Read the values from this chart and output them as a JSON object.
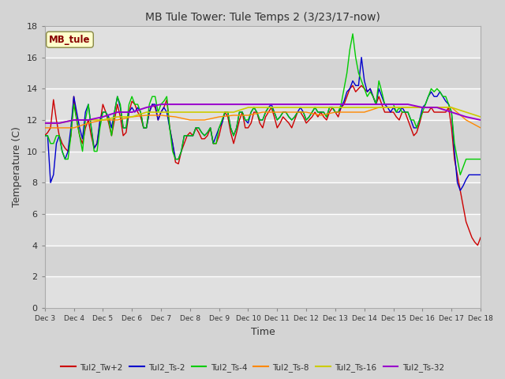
{
  "title": "MB Tule Tower: Tule Temps 2 (3/23/17-now)",
  "xlabel": "Time",
  "ylabel": "Temperature (C)",
  "ylim": [
    0,
    18
  ],
  "xlim": [
    0,
    15
  ],
  "x_tick_labels": [
    "Dec 3",
    "Dec 4",
    "Dec 5",
    "Dec 6",
    "Dec 7",
    "Dec 8",
    "Dec 9",
    "Dec 10",
    "Dec 11",
    "Dec 12",
    "Dec 13",
    "Dec 14",
    "Dec 15",
    "Dec 16",
    "Dec 17",
    "Dec 18"
  ],
  "fig_bg": "#d4d4d4",
  "plot_bg": "#e8e8e8",
  "band_colors": [
    "#e0e0e0",
    "#d0d0d0"
  ],
  "legend_box_label": "MB_tule",
  "series": [
    {
      "name": "Tul2_Tw+2",
      "color": "#cc0000",
      "lw": 1.0,
      "data_x": [
        0,
        0.1,
        0.2,
        0.3,
        0.4,
        0.5,
        0.6,
        0.7,
        0.8,
        0.9,
        1.0,
        1.1,
        1.2,
        1.3,
        1.4,
        1.5,
        1.6,
        1.7,
        1.8,
        1.9,
        2.0,
        2.1,
        2.2,
        2.3,
        2.4,
        2.5,
        2.6,
        2.7,
        2.8,
        2.9,
        3.0,
        3.1,
        3.2,
        3.3,
        3.4,
        3.5,
        3.6,
        3.7,
        3.8,
        3.9,
        4.0,
        4.1,
        4.2,
        4.3,
        4.4,
        4.5,
        4.6,
        4.7,
        4.8,
        4.9,
        5.0,
        5.1,
        5.2,
        5.3,
        5.4,
        5.5,
        5.6,
        5.7,
        5.8,
        5.9,
        6.0,
        6.1,
        6.2,
        6.3,
        6.4,
        6.5,
        6.6,
        6.7,
        6.8,
        6.9,
        7.0,
        7.1,
        7.2,
        7.3,
        7.4,
        7.5,
        7.6,
        7.7,
        7.8,
        7.9,
        8.0,
        8.1,
        8.2,
        8.3,
        8.4,
        8.5,
        8.6,
        8.7,
        8.8,
        8.9,
        9.0,
        9.1,
        9.2,
        9.3,
        9.4,
        9.5,
        9.6,
        9.7,
        9.8,
        9.9,
        10.0,
        10.1,
        10.2,
        10.3,
        10.4,
        10.5,
        10.6,
        10.7,
        10.8,
        10.9,
        11.0,
        11.1,
        11.2,
        11.3,
        11.4,
        11.5,
        11.6,
        11.7,
        11.8,
        11.9,
        12.0,
        12.1,
        12.2,
        12.3,
        12.4,
        12.5,
        12.6,
        12.7,
        12.8,
        12.9,
        13.0,
        13.1,
        13.2,
        13.3,
        13.4,
        13.5,
        13.6,
        13.7,
        13.8,
        13.9,
        14.0,
        14.1,
        14.2,
        14.3,
        14.4,
        14.5,
        14.6,
        14.7,
        14.8,
        14.9,
        15.0
      ],
      "data_y": [
        11.0,
        11.2,
        11.5,
        13.3,
        12.0,
        11.0,
        10.5,
        10.2,
        10.0,
        11.0,
        13.5,
        12.0,
        11.0,
        10.5,
        11.5,
        12.0,
        11.0,
        10.2,
        10.5,
        11.8,
        13.0,
        12.5,
        11.8,
        11.0,
        12.0,
        13.0,
        12.2,
        11.0,
        11.2,
        12.5,
        13.2,
        13.0,
        12.5,
        12.2,
        11.5,
        11.5,
        12.5,
        13.0,
        12.8,
        12.0,
        12.5,
        12.8,
        13.3,
        11.5,
        10.5,
        9.3,
        9.2,
        10.0,
        10.5,
        11.0,
        11.2,
        11.0,
        11.5,
        11.2,
        10.8,
        10.8,
        11.0,
        11.5,
        10.5,
        10.5,
        11.0,
        11.8,
        12.5,
        12.2,
        11.2,
        10.5,
        11.2,
        12.0,
        12.5,
        11.5,
        11.5,
        11.8,
        12.5,
        12.5,
        11.8,
        11.5,
        12.2,
        12.5,
        12.8,
        12.2,
        11.5,
        11.8,
        12.2,
        12.0,
        11.8,
        11.5,
        12.0,
        12.5,
        12.5,
        12.2,
        11.8,
        12.0,
        12.2,
        12.5,
        12.2,
        12.5,
        12.2,
        12.0,
        12.5,
        12.8,
        12.5,
        12.2,
        12.8,
        13.0,
        13.5,
        14.0,
        14.2,
        13.8,
        14.0,
        14.2,
        14.0,
        13.8,
        14.0,
        13.5,
        13.0,
        13.5,
        13.0,
        12.5,
        12.5,
        12.5,
        12.5,
        12.2,
        12.0,
        12.5,
        12.5,
        12.0,
        11.5,
        11.0,
        11.2,
        11.8,
        12.5,
        12.5,
        12.5,
        12.8,
        12.5,
        12.5,
        12.5,
        12.5,
        12.5,
        12.8,
        11.5,
        9.5,
        8.5,
        7.5,
        6.5,
        5.5,
        5.0,
        4.5,
        4.2,
        4.0,
        4.5
      ]
    },
    {
      "name": "Tul2_Ts-2",
      "color": "#0000cc",
      "lw": 1.0,
      "data_x": [
        0,
        0.1,
        0.2,
        0.3,
        0.4,
        0.5,
        0.6,
        0.7,
        0.8,
        0.9,
        1.0,
        1.1,
        1.2,
        1.3,
        1.4,
        1.5,
        1.6,
        1.7,
        1.8,
        1.9,
        2.0,
        2.1,
        2.2,
        2.3,
        2.4,
        2.5,
        2.6,
        2.7,
        2.8,
        2.9,
        3.0,
        3.1,
        3.2,
        3.3,
        3.4,
        3.5,
        3.6,
        3.7,
        3.8,
        3.9,
        4.0,
        4.1,
        4.2,
        4.3,
        4.4,
        4.5,
        4.6,
        4.7,
        4.8,
        4.9,
        5.0,
        5.1,
        5.2,
        5.3,
        5.4,
        5.5,
        5.6,
        5.7,
        5.8,
        5.9,
        6.0,
        6.1,
        6.2,
        6.3,
        6.4,
        6.5,
        6.6,
        6.7,
        6.8,
        6.9,
        7.0,
        7.1,
        7.2,
        7.3,
        7.4,
        7.5,
        7.6,
        7.7,
        7.8,
        7.9,
        8.0,
        8.1,
        8.2,
        8.3,
        8.4,
        8.5,
        8.6,
        8.7,
        8.8,
        8.9,
        9.0,
        9.1,
        9.2,
        9.3,
        9.4,
        9.5,
        9.6,
        9.7,
        9.8,
        9.9,
        10.0,
        10.1,
        10.2,
        10.3,
        10.4,
        10.5,
        10.6,
        10.7,
        10.8,
        10.9,
        11.0,
        11.1,
        11.2,
        11.3,
        11.4,
        11.5,
        11.6,
        11.7,
        11.8,
        11.9,
        12.0,
        12.1,
        12.2,
        12.3,
        12.4,
        12.5,
        12.6,
        12.7,
        12.8,
        12.9,
        13.0,
        13.1,
        13.2,
        13.3,
        13.4,
        13.5,
        13.6,
        13.7,
        13.8,
        13.9,
        14.0,
        14.1,
        14.2,
        14.3,
        14.4,
        14.5,
        14.6,
        14.7,
        14.8,
        14.9,
        15.0
      ],
      "data_y": [
        11.0,
        11.0,
        8.0,
        8.5,
        10.5,
        11.0,
        10.0,
        9.5,
        10.0,
        11.5,
        13.5,
        12.5,
        11.5,
        10.8,
        12.5,
        13.0,
        11.5,
        10.2,
        10.5,
        12.0,
        12.5,
        12.5,
        12.2,
        11.5,
        12.5,
        13.5,
        12.8,
        11.5,
        11.5,
        12.5,
        12.8,
        12.5,
        12.8,
        12.5,
        11.5,
        11.5,
        12.5,
        13.0,
        13.0,
        12.0,
        12.5,
        12.8,
        12.5,
        11.5,
        10.5,
        9.5,
        9.5,
        10.0,
        11.0,
        11.0,
        11.0,
        11.0,
        11.5,
        11.5,
        11.2,
        11.0,
        11.2,
        11.5,
        10.5,
        11.0,
        11.5,
        11.8,
        12.5,
        12.5,
        11.5,
        11.0,
        11.5,
        12.5,
        12.5,
        12.0,
        11.8,
        12.5,
        12.8,
        12.5,
        12.0,
        12.0,
        12.5,
        12.8,
        13.0,
        12.5,
        12.0,
        12.2,
        12.5,
        12.5,
        12.2,
        12.0,
        12.2,
        12.5,
        12.8,
        12.5,
        12.0,
        12.2,
        12.5,
        12.8,
        12.5,
        12.5,
        12.5,
        12.2,
        12.8,
        12.8,
        12.5,
        12.5,
        12.8,
        13.2,
        13.8,
        14.0,
        14.5,
        14.2,
        14.2,
        16.0,
        14.5,
        13.8,
        14.0,
        13.5,
        13.0,
        14.0,
        13.5,
        13.0,
        12.8,
        12.5,
        12.8,
        12.5,
        12.5,
        12.8,
        12.5,
        12.5,
        12.0,
        11.5,
        11.5,
        12.0,
        12.8,
        13.0,
        13.5,
        13.8,
        13.5,
        13.5,
        13.8,
        13.5,
        13.2,
        13.0,
        12.5,
        10.0,
        8.0,
        7.5,
        7.8,
        8.2,
        8.5,
        8.5,
        8.5,
        8.5,
        8.5
      ]
    },
    {
      "name": "Tul2_Ts-4",
      "color": "#00cc00",
      "lw": 1.0,
      "data_x": [
        0,
        0.1,
        0.2,
        0.3,
        0.4,
        0.5,
        0.6,
        0.7,
        0.8,
        0.9,
        1.0,
        1.1,
        1.2,
        1.3,
        1.4,
        1.5,
        1.6,
        1.7,
        1.8,
        1.9,
        2.0,
        2.1,
        2.2,
        2.3,
        2.4,
        2.5,
        2.6,
        2.7,
        2.8,
        2.9,
        3.0,
        3.1,
        3.2,
        3.3,
        3.4,
        3.5,
        3.6,
        3.7,
        3.8,
        3.9,
        4.0,
        4.1,
        4.2,
        4.3,
        4.4,
        4.5,
        4.6,
        4.7,
        4.8,
        4.9,
        5.0,
        5.1,
        5.2,
        5.3,
        5.4,
        5.5,
        5.6,
        5.7,
        5.8,
        5.9,
        6.0,
        6.1,
        6.2,
        6.3,
        6.4,
        6.5,
        6.6,
        6.7,
        6.8,
        6.9,
        7.0,
        7.1,
        7.2,
        7.3,
        7.4,
        7.5,
        7.6,
        7.7,
        7.8,
        7.9,
        8.0,
        8.1,
        8.2,
        8.3,
        8.4,
        8.5,
        8.6,
        8.7,
        8.8,
        8.9,
        9.0,
        9.1,
        9.2,
        9.3,
        9.4,
        9.5,
        9.6,
        9.7,
        9.8,
        9.9,
        10.0,
        10.1,
        10.2,
        10.3,
        10.4,
        10.5,
        10.6,
        10.7,
        10.8,
        10.9,
        11.0,
        11.1,
        11.2,
        11.3,
        11.4,
        11.5,
        11.6,
        11.7,
        11.8,
        11.9,
        12.0,
        12.1,
        12.2,
        12.3,
        12.4,
        12.5,
        12.6,
        12.7,
        12.8,
        12.9,
        13.0,
        13.1,
        13.2,
        13.3,
        13.4,
        13.5,
        13.6,
        13.7,
        13.8,
        13.9,
        14.0,
        14.1,
        14.2,
        14.3,
        14.4,
        14.5,
        14.6,
        14.7,
        14.8,
        14.9,
        15.0
      ],
      "data_y": [
        11.0,
        11.0,
        10.5,
        10.5,
        11.0,
        11.0,
        10.0,
        9.5,
        9.5,
        11.0,
        13.0,
        12.0,
        11.0,
        10.0,
        12.0,
        13.0,
        11.5,
        10.0,
        10.0,
        11.5,
        12.5,
        12.5,
        12.0,
        11.0,
        12.5,
        13.5,
        13.0,
        11.5,
        11.5,
        13.0,
        13.5,
        13.0,
        13.0,
        12.5,
        11.5,
        11.5,
        13.0,
        13.5,
        13.5,
        12.5,
        13.0,
        13.2,
        13.5,
        11.5,
        10.0,
        9.5,
        9.5,
        10.0,
        11.0,
        11.0,
        11.0,
        11.0,
        11.5,
        11.5,
        11.2,
        11.0,
        11.2,
        11.5,
        10.5,
        10.5,
        11.5,
        12.0,
        12.5,
        12.5,
        11.5,
        11.0,
        11.5,
        12.5,
        12.5,
        12.0,
        12.0,
        12.5,
        12.8,
        12.5,
        12.0,
        12.0,
        12.5,
        12.8,
        12.8,
        12.5,
        12.0,
        12.2,
        12.5,
        12.5,
        12.2,
        12.0,
        12.2,
        12.5,
        12.5,
        12.5,
        12.0,
        12.2,
        12.5,
        12.8,
        12.5,
        12.5,
        12.5,
        12.2,
        12.8,
        12.8,
        12.5,
        12.5,
        13.0,
        14.0,
        15.0,
        16.5,
        17.5,
        16.0,
        15.0,
        14.5,
        14.0,
        13.5,
        13.8,
        13.5,
        13.0,
        14.5,
        13.8,
        13.0,
        13.0,
        13.0,
        13.0,
        12.5,
        12.8,
        12.5,
        12.5,
        12.5,
        12.0,
        12.0,
        11.5,
        12.0,
        12.5,
        13.0,
        13.5,
        14.0,
        13.8,
        14.0,
        13.8,
        13.5,
        13.5,
        13.0,
        12.5,
        10.5,
        9.5,
        8.5,
        9.0,
        9.5,
        9.5,
        9.5,
        9.5,
        9.5,
        9.5
      ]
    },
    {
      "name": "Tul2_Ts-8",
      "color": "#ff8800",
      "lw": 1.0,
      "data_x": [
        0,
        0.5,
        1.0,
        1.5,
        2.0,
        2.5,
        3.0,
        3.5,
        4.0,
        4.5,
        5.0,
        5.5,
        6.0,
        6.5,
        7.0,
        7.5,
        8.0,
        8.5,
        9.0,
        9.5,
        10.0,
        10.5,
        11.0,
        11.5,
        12.0,
        12.5,
        13.0,
        13.5,
        14.0,
        14.5,
        15.0
      ],
      "data_y": [
        11.5,
        11.5,
        11.5,
        11.8,
        12.0,
        12.0,
        12.2,
        12.3,
        12.3,
        12.2,
        12.0,
        12.0,
        12.2,
        12.3,
        12.3,
        12.5,
        12.5,
        12.5,
        12.5,
        12.3,
        12.5,
        12.5,
        12.5,
        12.8,
        12.8,
        12.8,
        12.8,
        12.8,
        12.8,
        12.0,
        11.5
      ]
    },
    {
      "name": "Tul2_Ts-16",
      "color": "#cccc00",
      "lw": 1.2,
      "data_x": [
        0,
        0.5,
        1.0,
        1.5,
        2.0,
        2.5,
        3.0,
        3.5,
        4.0,
        4.5,
        5.0,
        5.5,
        6.0,
        6.5,
        7.0,
        7.5,
        8.0,
        8.5,
        9.0,
        9.5,
        10.0,
        10.5,
        11.0,
        11.5,
        12.0,
        12.5,
        13.0,
        13.5,
        14.0,
        14.5,
        15.0
      ],
      "data_y": [
        11.8,
        11.8,
        12.0,
        12.0,
        12.0,
        12.2,
        12.2,
        12.5,
        12.5,
        12.5,
        12.5,
        12.5,
        12.5,
        12.5,
        12.8,
        12.8,
        12.8,
        12.8,
        12.8,
        12.8,
        12.8,
        12.8,
        12.8,
        12.8,
        12.8,
        12.8,
        12.8,
        12.8,
        12.8,
        12.5,
        12.2
      ]
    },
    {
      "name": "Tul2_Ts-32",
      "color": "#9900cc",
      "lw": 1.4,
      "data_x": [
        0,
        0.5,
        1.0,
        1.5,
        2.0,
        2.5,
        3.0,
        3.5,
        4.0,
        4.5,
        5.0,
        5.5,
        6.0,
        6.5,
        7.0,
        7.5,
        8.0,
        8.5,
        9.0,
        9.5,
        10.0,
        10.5,
        11.0,
        11.5,
        12.0,
        12.5,
        13.0,
        13.5,
        14.0,
        14.5,
        15.0
      ],
      "data_y": [
        11.8,
        11.8,
        12.0,
        12.0,
        12.2,
        12.5,
        12.5,
        12.8,
        13.0,
        13.0,
        13.0,
        13.0,
        13.0,
        13.0,
        13.0,
        13.0,
        13.0,
        13.0,
        13.0,
        13.0,
        13.0,
        13.0,
        13.0,
        13.0,
        13.0,
        13.0,
        12.8,
        12.8,
        12.5,
        12.2,
        12.0
      ]
    }
  ]
}
